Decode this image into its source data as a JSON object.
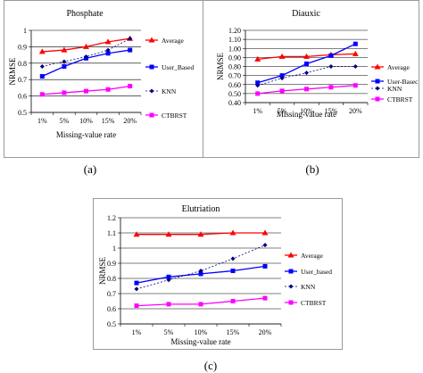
{
  "chart_data": [
    {
      "type": "line",
      "title": "Phosphate",
      "xlabel": "Missing-value rate",
      "ylabel": "NRMSE",
      "categories": [
        "1%",
        "5%",
        "10%",
        "15%",
        "20%"
      ],
      "ylim": [
        0.5,
        1.0
      ],
      "yticks": [
        "0.5",
        "0.6",
        "0.7",
        "0.8",
        "0.9",
        "1"
      ],
      "legend_position": "right",
      "series": [
        {
          "name": "Average",
          "values": [
            0.87,
            0.88,
            0.9,
            0.93,
            0.95
          ],
          "color": "#ff0000",
          "marker": "triangle",
          "dashed": false
        },
        {
          "name": "User_Based",
          "values": [
            0.72,
            0.78,
            0.83,
            0.86,
            0.88
          ],
          "color": "#0000ff",
          "marker": "square",
          "dashed": false
        },
        {
          "name": "KNN",
          "values": [
            0.78,
            0.81,
            0.84,
            0.88,
            0.95
          ],
          "color": "#000080",
          "marker": "diamond",
          "dashed": true
        },
        {
          "name": "CTBRST",
          "values": [
            0.61,
            0.62,
            0.63,
            0.64,
            0.66
          ],
          "color": "#ff00ff",
          "marker": "square",
          "dashed": false
        }
      ]
    },
    {
      "type": "line",
      "title": "Diauxic",
      "xlabel": "Missing-value rate",
      "ylabel": "NRMSE",
      "categories": [
        "1%",
        "5%",
        "10%",
        "15%",
        "20%"
      ],
      "ylim": [
        0.4,
        1.2
      ],
      "yticks": [
        "0.40",
        "0.50",
        "0.60",
        "0.70",
        "0.80",
        "0.90",
        "1.00",
        "1.10",
        "1.20"
      ],
      "legend_position": "right",
      "series": [
        {
          "name": "Average",
          "values": [
            0.88,
            0.91,
            0.91,
            0.93,
            0.94
          ],
          "color": "#ff0000",
          "marker": "triangle",
          "dashed": false
        },
        {
          "name": "User-Basec",
          "values": [
            0.62,
            0.7,
            0.83,
            0.92,
            1.05
          ],
          "color": "#0000ff",
          "marker": "square",
          "dashed": false
        },
        {
          "name": "KNN",
          "values": [
            0.59,
            0.67,
            0.73,
            0.8,
            0.8
          ],
          "color": "#000080",
          "marker": "diamond",
          "dashed": true
        },
        {
          "name": "CTBRST",
          "values": [
            0.5,
            0.53,
            0.55,
            0.57,
            0.59
          ],
          "color": "#ff00ff",
          "marker": "square",
          "dashed": false
        }
      ]
    },
    {
      "type": "line",
      "title": "Elutriation",
      "xlabel": "Missing-value rate",
      "ylabel": "NRMSE",
      "categories": [
        "1%",
        "5%",
        "10%",
        "15%",
        "20%"
      ],
      "ylim": [
        0.5,
        1.2
      ],
      "yticks": [
        "0.5",
        "0.6",
        "0.7",
        "0.8",
        "0.9",
        "1",
        "1.1",
        "1.2"
      ],
      "legend_position": "right",
      "series": [
        {
          "name": "Average",
          "values": [
            1.09,
            1.09,
            1.09,
            1.1,
            1.1
          ],
          "color": "#ff0000",
          "marker": "triangle",
          "dashed": false
        },
        {
          "name": "User_based",
          "values": [
            0.77,
            0.81,
            0.83,
            0.85,
            0.88
          ],
          "color": "#0000ff",
          "marker": "square",
          "dashed": false
        },
        {
          "name": "KNN",
          "values": [
            0.73,
            0.79,
            0.85,
            0.93,
            1.02
          ],
          "color": "#000080",
          "marker": "diamond",
          "dashed": true
        },
        {
          "name": "CTBRST",
          "values": [
            0.62,
            0.63,
            0.63,
            0.65,
            0.67
          ],
          "color": "#ff00ff",
          "marker": "square",
          "dashed": false
        }
      ]
    }
  ],
  "captions": [
    "(a)",
    "(b)",
    "(c)"
  ]
}
